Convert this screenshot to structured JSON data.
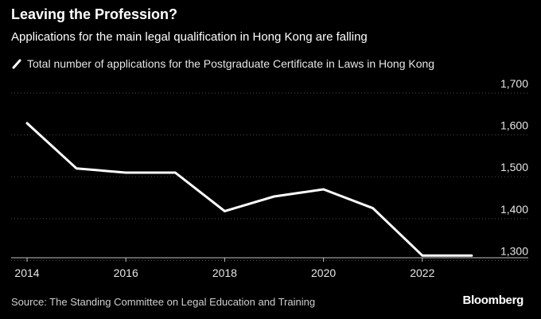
{
  "header": {
    "title": "Leaving the Profession?",
    "subtitle": "Applications for the main legal qualification in Hong Kong are falling"
  },
  "footer": {
    "source": "Source: The Standing Committee on Legal Education and Training",
    "brand": "Bloomberg"
  },
  "colors": {
    "background": "#000000",
    "line": "#ffffff",
    "grid": "#4a4a4a",
    "text": "#e6e6e6"
  },
  "chart_data": {
    "type": "line",
    "series": [
      {
        "name": "Total number of applications for the Postgraduate Certificate in Laws in Hong Kong",
        "x": [
          2014,
          2015,
          2016,
          2017,
          2018,
          2019,
          2020,
          2021,
          2022,
          2023
        ],
        "values": [
          1628,
          1520,
          1510,
          1510,
          1418,
          1453,
          1470,
          1425,
          1312,
          1312
        ]
      }
    ],
    "xlim": [
      2014,
      2024
    ],
    "ylim": [
      1280,
      1700
    ],
    "x_ticks": [
      2014,
      2016,
      2018,
      2020,
      2022
    ],
    "y_ticks": [
      1300,
      1400,
      1500,
      1600,
      1700
    ],
    "x_tick_labels": [
      "2014",
      "2016",
      "2018",
      "2020",
      "2022"
    ],
    "y_tick_labels": [
      "1,300",
      "1,400",
      "1,500",
      "1,600",
      "1,700"
    ],
    "grid": "horizontal",
    "y_axis_side": "right",
    "legend_position": "top-left"
  }
}
